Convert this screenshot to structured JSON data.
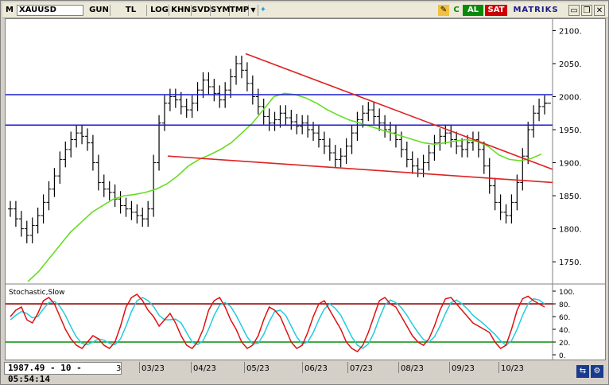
{
  "toolbar": {
    "menu_label": "M",
    "symbol": "XAUUSD",
    "buttons": [
      "GUN",
      "TL",
      "LOG",
      "KHN",
      "SVD",
      "SYM",
      "TMP"
    ],
    "al_label": "AL",
    "sat_label": "SAT",
    "brand": "MATRIKS",
    "c_label": "C"
  },
  "status": {
    "readout": "1987.49 - 10 - 05:54:14"
  },
  "colors": {
    "price_bars": "#000000",
    "ma_line": "#66dd22",
    "trend_lines": "#dd2222",
    "horizontal_levels": "#1a1acc",
    "stoch_k": "#dd1111",
    "stoch_d": "#22ccdd",
    "stoch_upper": "#8b0000",
    "stoch_lower": "#0a8a0a"
  },
  "chart_data": [
    {
      "type": "line",
      "subtype": "ohlc",
      "title": "XAUUSD",
      "x_ticks": [
        "3",
        "03/23",
        "04/23",
        "05/23",
        "06/23",
        "07/23",
        "08/23",
        "09/23",
        "10/23"
      ],
      "y_ticks": [
        1750,
        1800,
        1850,
        1900,
        1950,
        2000,
        2050,
        2100
      ],
      "ylim": [
        1720,
        2115
      ],
      "horizontal_levels": [
        2003,
        1957
      ],
      "descending_trendline": {
        "from": [
          "04/23",
          2065
        ],
        "to": [
          "10/23",
          1890
        ]
      },
      "lower_trendline": {
        "from": [
          "03/23",
          1910
        ],
        "to": [
          "10/23",
          1870
        ]
      },
      "series": [
        {
          "name": "Close",
          "values": [
            1830,
            1815,
            1800,
            1790,
            1805,
            1820,
            1840,
            1860,
            1880,
            1905,
            1920,
            1935,
            1945,
            1940,
            1930,
            1900,
            1870,
            1860,
            1855,
            1845,
            1835,
            1830,
            1825,
            1820,
            1815,
            1830,
            1900,
            1960,
            1990,
            2000,
            1995,
            1985,
            1980,
            1990,
            2010,
            2025,
            2015,
            2005,
            1995,
            2010,
            2030,
            2050,
            2040,
            2020,
            2000,
            1985,
            1970,
            1960,
            1965,
            1975,
            1968,
            1962,
            1955,
            1960,
            1950,
            1945,
            1935,
            1925,
            1915,
            1905,
            1910,
            1925,
            1945,
            1965,
            1975,
            1980,
            1970,
            1960,
            1950,
            1945,
            1935,
            1920,
            1905,
            1895,
            1890,
            1900,
            1915,
            1930,
            1940,
            1945,
            1935,
            1925,
            1920,
            1930,
            1935,
            1920,
            1895,
            1865,
            1840,
            1825,
            1820,
            1840,
            1870,
            1910,
            1950,
            1975,
            1985,
            1990
          ],
          "ylim": [
            1720,
            2115
          ]
        },
        {
          "name": "MA",
          "values": [
            1720,
            1735,
            1755,
            1775,
            1795,
            1810,
            1825,
            1835,
            1845,
            1850,
            1852,
            1855,
            1860,
            1868,
            1880,
            1895,
            1905,
            1912,
            1920,
            1930,
            1945,
            1960,
            1980,
            2000,
            2005,
            2003,
            1998,
            1990,
            1980,
            1972,
            1965,
            1960,
            1955,
            1950,
            1945,
            1940,
            1935,
            1930,
            1928,
            1930,
            1933,
            1935,
            1932,
            1925,
            1912,
            1905,
            1903,
            1906,
            1913
          ],
          "ylim": [
            1720,
            2115
          ]
        }
      ],
      "ylabel": ""
    },
    {
      "type": "line",
      "title": "Stochastic,Slow",
      "ylim": [
        0,
        100
      ],
      "y_ticks": [
        0,
        20,
        40,
        60,
        80,
        100
      ],
      "reference_levels": [
        80,
        20
      ],
      "series": [
        {
          "name": "%K",
          "values": [
            60,
            70,
            75,
            55,
            50,
            65,
            85,
            90,
            80,
            60,
            40,
            25,
            15,
            10,
            20,
            30,
            25,
            15,
            10,
            20,
            45,
            75,
            90,
            95,
            85,
            70,
            60,
            45,
            55,
            65,
            50,
            30,
            15,
            10,
            20,
            40,
            70,
            85,
            90,
            75,
            55,
            40,
            20,
            10,
            15,
            30,
            55,
            75,
            70,
            60,
            40,
            20,
            10,
            15,
            35,
            60,
            80,
            85,
            70,
            55,
            40,
            20,
            10,
            5,
            15,
            35,
            60,
            85,
            90,
            80,
            75,
            60,
            45,
            30,
            20,
            15,
            25,
            45,
            70,
            88,
            90,
            80,
            70,
            60,
            50,
            45,
            40,
            35,
            20,
            10,
            15,
            40,
            70,
            88,
            92,
            85,
            80,
            75
          ]
        },
        {
          "name": "%D",
          "values": [
            55,
            62,
            68,
            65,
            58,
            60,
            72,
            82,
            84,
            76,
            62,
            44,
            28,
            18,
            16,
            20,
            25,
            23,
            18,
            16,
            25,
            45,
            68,
            85,
            90,
            85,
            76,
            62,
            55,
            55,
            56,
            50,
            35,
            20,
            16,
            22,
            40,
            62,
            78,
            82,
            76,
            62,
            45,
            28,
            17,
            18,
            32,
            52,
            68,
            70,
            62,
            45,
            28,
            17,
            20,
            35,
            55,
            72,
            80,
            73,
            62,
            45,
            28,
            15,
            10,
            17,
            34,
            58,
            78,
            86,
            82,
            74,
            62,
            48,
            35,
            24,
            20,
            28,
            45,
            65,
            82,
            86,
            80,
            72,
            62,
            55,
            48,
            40,
            32,
            22,
            15,
            22,
            40,
            62,
            80,
            88,
            86,
            80
          ]
        }
      ]
    }
  ]
}
